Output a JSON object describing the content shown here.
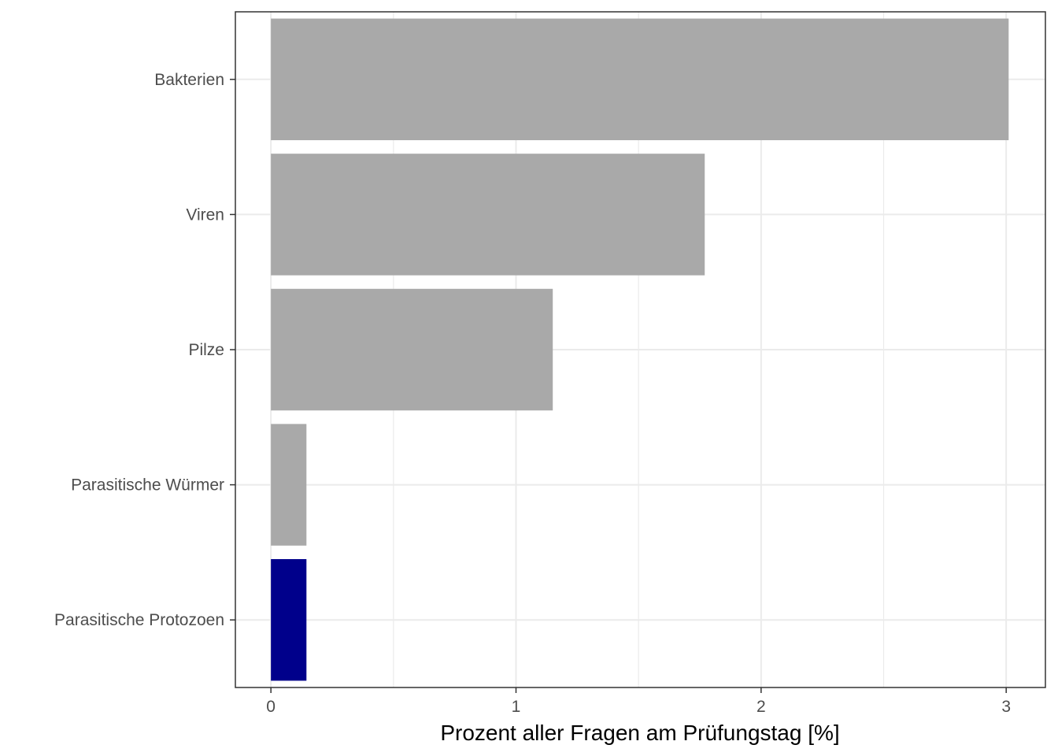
{
  "chart_data": {
    "type": "bar",
    "orientation": "horizontal",
    "categories": [
      "Bakterien",
      "Viren",
      "Pilze",
      "Parasitische Würmer",
      "Parasitische Protozoen"
    ],
    "values": [
      3.01,
      1.77,
      1.15,
      0.145,
      0.145
    ],
    "highlight": "Parasitische Protozoen",
    "xlabel": "Prozent aller Fragen am Prüfungstag [%]",
    "ylabel": "",
    "xlim": [
      -0.145,
      3.16
    ],
    "xticks": [
      0,
      1,
      2,
      3
    ],
    "xtick_labels": [
      "0",
      "1",
      "2",
      "3"
    ],
    "grid": true,
    "colors": {
      "bar": "#a9a9a9",
      "highlight": "#00008b",
      "grid": "#ebebeb",
      "border": "#333333"
    }
  }
}
